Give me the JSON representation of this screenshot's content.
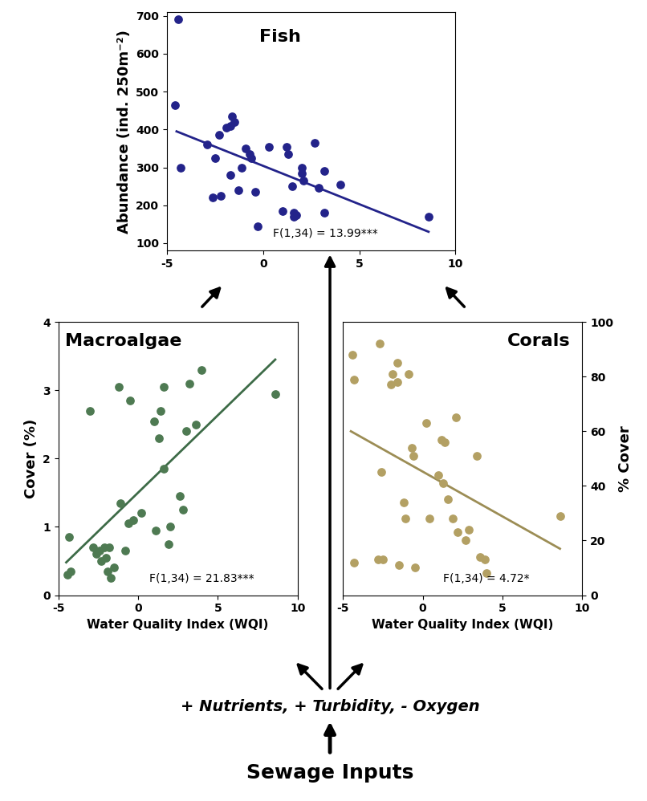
{
  "chart_data": [
    {
      "type": "scatter",
      "title": "Fish",
      "y_label": "Abundance (ind. 250m⁻²)",
      "annotations": [
        "F(1,34) = 13.99***"
      ],
      "xlim": [
        -5,
        10
      ],
      "xticks": [
        -5,
        0,
        5,
        10
      ],
      "ylim": [
        80,
        710
      ],
      "yticks": [
        100,
        200,
        300,
        400,
        500,
        600,
        700
      ],
      "series": [
        {
          "type": "scatter",
          "color": "#23238a",
          "x": [
            -4.4,
            -4.6,
            -4.3,
            -2.9,
            -2.5,
            -2.6,
            -2.2,
            -2.3,
            -1.9,
            -1.7,
            -1.6,
            -1.5,
            -1.7,
            -1.3,
            -1.1,
            -0.9,
            -0.7,
            -0.6,
            -0.4,
            -0.3,
            0.3,
            1.2,
            1.3,
            1.0,
            1.5,
            1.6,
            1.6,
            1.7,
            2.0,
            2.0,
            2.1,
            2.7,
            2.9,
            3.2,
            3.2,
            4.0,
            8.6
          ],
          "values": [
            690,
            465,
            300,
            360,
            325,
            220,
            225,
            385,
            405,
            410,
            435,
            420,
            280,
            240,
            300,
            350,
            335,
            325,
            235,
            145,
            355,
            355,
            335,
            185,
            250,
            180,
            170,
            175,
            300,
            285,
            265,
            365,
            245,
            290,
            180,
            255,
            170
          ]
        },
        {
          "type": "line",
          "color": "#23238a",
          "x": [
            -4.5,
            8.6
          ],
          "values": [
            395,
            130
          ]
        }
      ]
    },
    {
      "type": "scatter",
      "title": "Macroalgae",
      "x_label": "Water Quality Index (WQI)",
      "y_label": "Cover (%)",
      "annotations": [
        "F(1,34) = 21.83***"
      ],
      "xlim": [
        -5,
        10
      ],
      "xticks": [
        -5,
        0,
        5,
        10
      ],
      "ylim": [
        0,
        4
      ],
      "yticks": [
        0,
        1,
        2,
        3,
        4
      ],
      "series": [
        {
          "type": "scatter",
          "color": "#4e7a52",
          "x": [
            -4.4,
            -4.3,
            -4.2,
            -3.0,
            -2.8,
            -2.6,
            -2.4,
            -2.3,
            -2.1,
            -2.0,
            -1.9,
            -1.8,
            -1.7,
            -1.5,
            -1.2,
            -1.1,
            -0.8,
            -0.6,
            -0.5,
            -0.3,
            0.2,
            1.0,
            1.1,
            1.3,
            1.4,
            1.6,
            1.6,
            1.9,
            2.0,
            2.6,
            2.8,
            3.0,
            3.2,
            3.6,
            4.0,
            8.6
          ],
          "values": [
            0.3,
            0.85,
            0.35,
            2.7,
            0.7,
            0.6,
            0.65,
            0.5,
            0.7,
            0.55,
            0.35,
            0.7,
            0.25,
            0.4,
            3.05,
            1.35,
            0.65,
            1.05,
            2.85,
            1.1,
            1.2,
            2.55,
            0.95,
            2.3,
            2.7,
            3.05,
            1.85,
            0.75,
            1.0,
            1.45,
            1.25,
            2.4,
            3.1,
            2.5,
            3.3,
            2.95
          ]
        },
        {
          "type": "line",
          "color": "#3d6b47",
          "x": [
            -4.5,
            8.6
          ],
          "values": [
            0.48,
            3.45
          ]
        }
      ]
    },
    {
      "type": "scatter",
      "title": "Corals",
      "x_label": "Water Quality Index (WQI)",
      "y_label": "% Cover",
      "annotations": [
        "F(1,34) = 4.72*"
      ],
      "xlim": [
        -5,
        10
      ],
      "xticks": [
        -5,
        0,
        5,
        10
      ],
      "ylim": [
        0,
        100
      ],
      "yticks": [
        0,
        20,
        40,
        60,
        80,
        100
      ],
      "series": [
        {
          "type": "scatter",
          "color": "#b3a063",
          "x": [
            -4.4,
            -4.3,
            -4.3,
            -2.7,
            -2.6,
            -2.5,
            -2.8,
            -2.0,
            -1.9,
            -1.6,
            -1.6,
            -1.5,
            -1.2,
            -1.1,
            -0.9,
            -0.7,
            -0.6,
            -0.5,
            0.2,
            0.4,
            1.0,
            1.2,
            1.3,
            1.4,
            1.6,
            1.9,
            2.1,
            2.2,
            2.7,
            2.9,
            3.4,
            3.6,
            3.9,
            4.0,
            8.6
          ],
          "values": [
            88,
            79,
            12,
            92,
            45,
            13,
            13,
            77,
            81,
            85,
            78,
            11,
            34,
            28,
            81,
            54,
            51,
            10,
            63,
            28,
            44,
            57,
            41,
            56,
            35,
            28,
            65,
            23,
            20,
            24,
            51,
            14,
            13,
            8,
            29
          ]
        },
        {
          "type": "line",
          "color": "#9c8d55",
          "x": [
            -4.5,
            8.6
          ],
          "values": [
            60,
            17
          ]
        }
      ]
    }
  ],
  "annotations": [
    "+ Nutrients, + Turbidity, - Oxygen",
    "Sewage Inputs"
  ]
}
